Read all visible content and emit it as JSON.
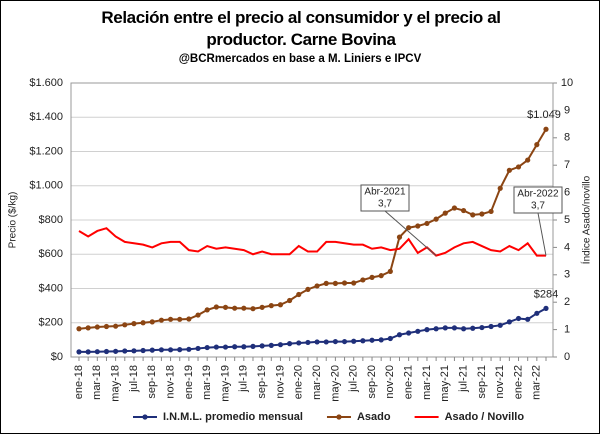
{
  "chart_data": {
    "type": "line",
    "title": "Relación entre el precio al consumidor y el precio al productor. Carne Bovina",
    "subtitle": "@BCRmercados en base a M. Liniers e IPCV",
    "y_label": "Precio ($/kg)",
    "y2_label": "Índice Asado/novillo",
    "categories": [
      "ene-18",
      null,
      "mar-18",
      null,
      "may-18",
      null,
      "jul-18",
      null,
      "sep-18",
      null,
      "nov-18",
      null,
      "ene-19",
      null,
      "mar-19",
      null,
      "may-19",
      null,
      "jul-19",
      null,
      "sep-19",
      null,
      "nov-19",
      null,
      "ene-20",
      null,
      "mar-20",
      null,
      "may-20",
      null,
      "jul-20",
      null,
      "sep-20",
      null,
      "nov-20",
      null,
      "ene-21",
      null,
      "mar-21",
      null,
      "may-21",
      null,
      "jul-21",
      null,
      "sep-21",
      null,
      "nov-21",
      null,
      "ene-22",
      null,
      "mar-22",
      null
    ],
    "ylim": [
      0,
      1600
    ],
    "yticks": [
      {
        "value": 0,
        "label": "$0"
      },
      {
        "value": 200,
        "label": "$200"
      },
      {
        "value": 400,
        "label": "$400"
      },
      {
        "value": 600,
        "label": "$600"
      },
      {
        "value": 800,
        "label": "$800"
      },
      {
        "value": 1000,
        "label": "$1.000"
      },
      {
        "value": 1200,
        "label": "$1.200"
      },
      {
        "value": 1400,
        "label": "$1.400"
      },
      {
        "value": 1600,
        "label": "$1.600"
      }
    ],
    "y2lim": [
      0,
      10
    ],
    "y2ticks": [
      0,
      1,
      2,
      3,
      4,
      5,
      6,
      7,
      8,
      9,
      10
    ],
    "grid": true,
    "legend": "bottom",
    "series": [
      {
        "name": "I.N.M.L. promedio mensual",
        "color": "#1f2f7a",
        "marker": true,
        "values": [
          30,
          30,
          31,
          32,
          33,
          35,
          36,
          38,
          40,
          42,
          42,
          43,
          45,
          50,
          55,
          58,
          58,
          60,
          60,
          62,
          65,
          68,
          72,
          78,
          82,
          85,
          88,
          88,
          90,
          90,
          92,
          95,
          98,
          100,
          108,
          130,
          140,
          150,
          160,
          165,
          170,
          170,
          165,
          168,
          172,
          178,
          185,
          205,
          225,
          220,
          255,
          284
        ],
        "value_labels": [
          null,
          null,
          null,
          null,
          null,
          null,
          null,
          null,
          null,
          null,
          null,
          null,
          null,
          null,
          null,
          null,
          null,
          null,
          null,
          null,
          null,
          null,
          null,
          null,
          null,
          null,
          null,
          null,
          null,
          null,
          null,
          null,
          null,
          null,
          null,
          null,
          null,
          null,
          null,
          null,
          null,
          null,
          null,
          null,
          null,
          null,
          null,
          null,
          null,
          null,
          null,
          "$284"
        ]
      },
      {
        "name": "Asado",
        "color": "#8b4513",
        "marker": true,
        "values": [
          165,
          170,
          175,
          178,
          180,
          188,
          195,
          200,
          205,
          215,
          220,
          220,
          222,
          245,
          275,
          292,
          290,
          285,
          285,
          282,
          290,
          300,
          305,
          330,
          365,
          395,
          415,
          430,
          430,
          432,
          432,
          450,
          465,
          475,
          500,
          700,
          755,
          765,
          780,
          805,
          840,
          870,
          855,
          830,
          835,
          850,
          985,
          1090,
          1110,
          1150,
          1240,
          1330
        ]
      },
      {
        "name": "Asado / Novillo",
        "color": "#ff0000",
        "marker": false,
        "axis": "y2",
        "values": [
          4.6,
          4.4,
          4.6,
          4.7,
          4.4,
          4.2,
          4.15,
          4.1,
          4.0,
          4.15,
          4.2,
          4.2,
          3.9,
          3.85,
          4.05,
          3.95,
          4.0,
          3.95,
          3.9,
          3.75,
          3.85,
          3.75,
          3.75,
          3.75,
          4.05,
          3.85,
          3.85,
          4.2,
          4.2,
          4.15,
          4.1,
          4.1,
          3.95,
          4.0,
          3.9,
          3.95,
          4.3,
          3.8,
          4.0,
          3.7,
          3.8,
          4.0,
          4.15,
          4.2,
          4.05,
          3.9,
          3.85,
          4.05,
          3.9,
          4.15,
          3.7,
          3.7
        ]
      }
    ],
    "annotations": [
      {
        "label": "Abr-2021",
        "value_label": "3,7"
      },
      {
        "label": "Abr-2022",
        "value_label": "3,7"
      },
      {
        "label": "$1.049"
      }
    ]
  }
}
